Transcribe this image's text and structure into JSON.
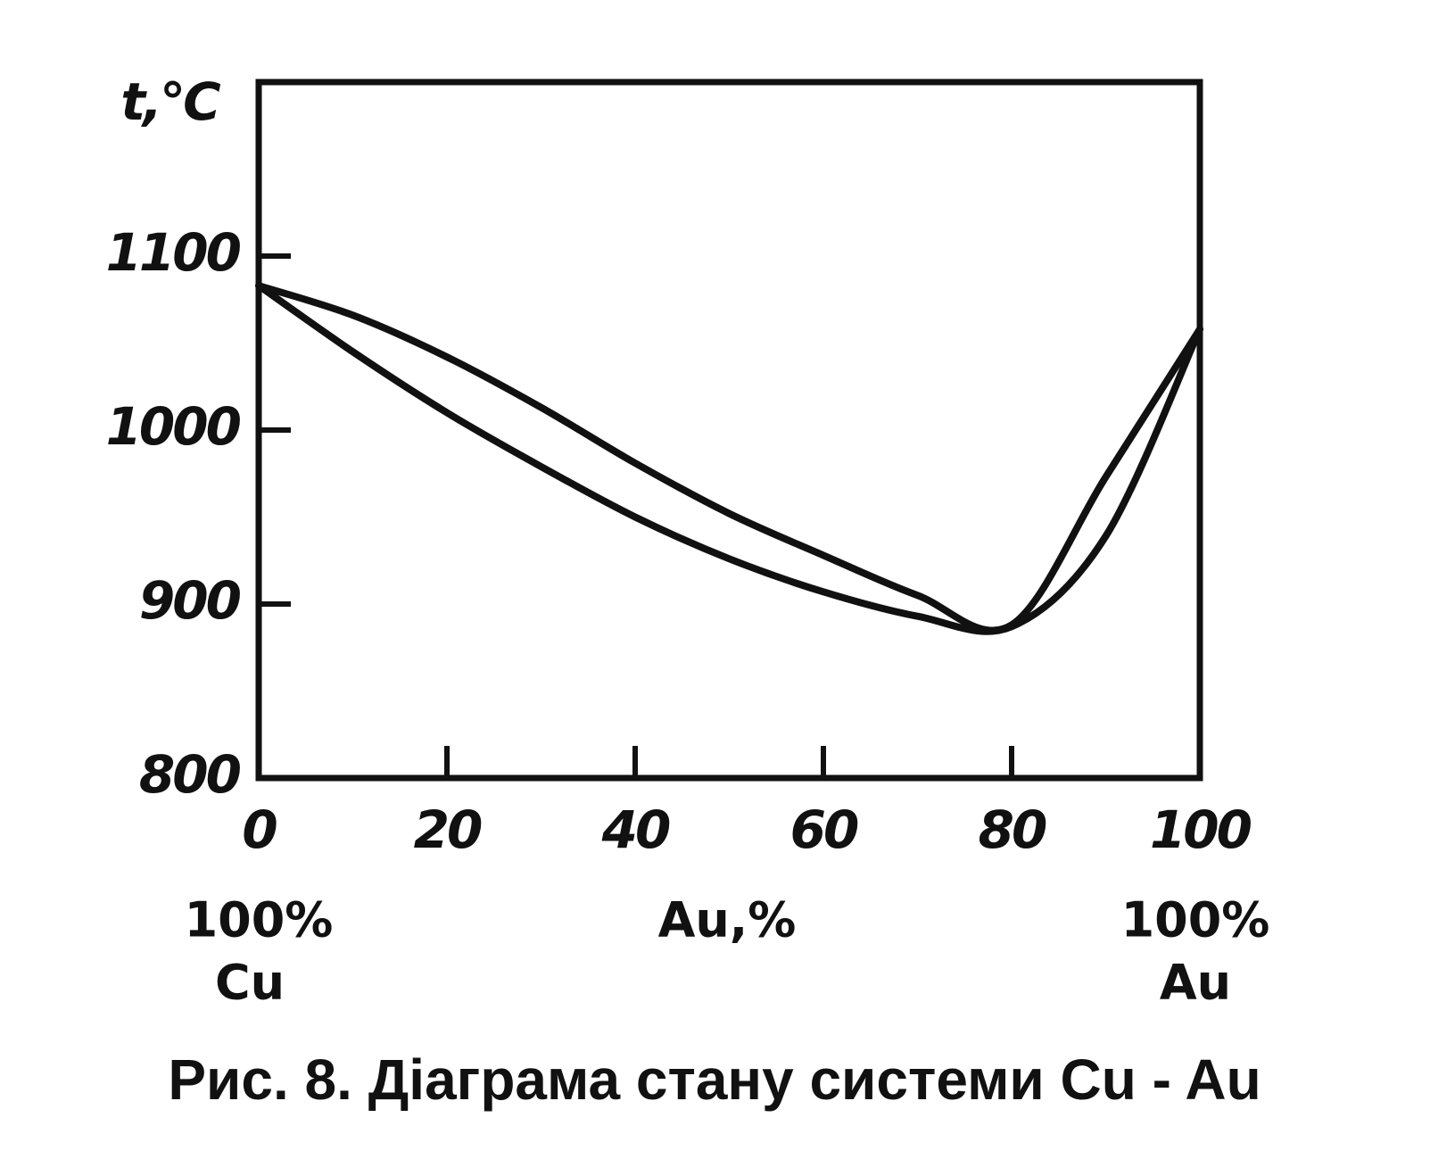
{
  "chart_data": {
    "type": "line",
    "title": "Рис. 8. Діаграма стану  системи  Cu - Au",
    "ylabel": "t,°C",
    "xlabel": "Au,%",
    "left_label": [
      "100%",
      "Cu"
    ],
    "right_label": [
      "100%",
      "Au"
    ],
    "x": [
      0,
      10,
      20,
      30,
      40,
      50,
      60,
      70,
      80,
      90,
      100
    ],
    "series": [
      {
        "color": "#111111",
        "values": [
          1083,
          1066,
          1042,
          1013,
          981,
          952,
          928,
          905,
          888,
          973,
          1058
        ]
      },
      {
        "color": "#111111",
        "values": [
          1083,
          1045,
          1010,
          979,
          950,
          926,
          907,
          893,
          887,
          939,
          1058
        ]
      }
    ],
    "xlim": [
      0,
      100
    ],
    "xticks": [
      0,
      20,
      40,
      60,
      80,
      100
    ],
    "ylim": [
      800,
      1200
    ],
    "yticks": [
      800,
      900,
      1000,
      1100
    ],
    "grid": false
  }
}
